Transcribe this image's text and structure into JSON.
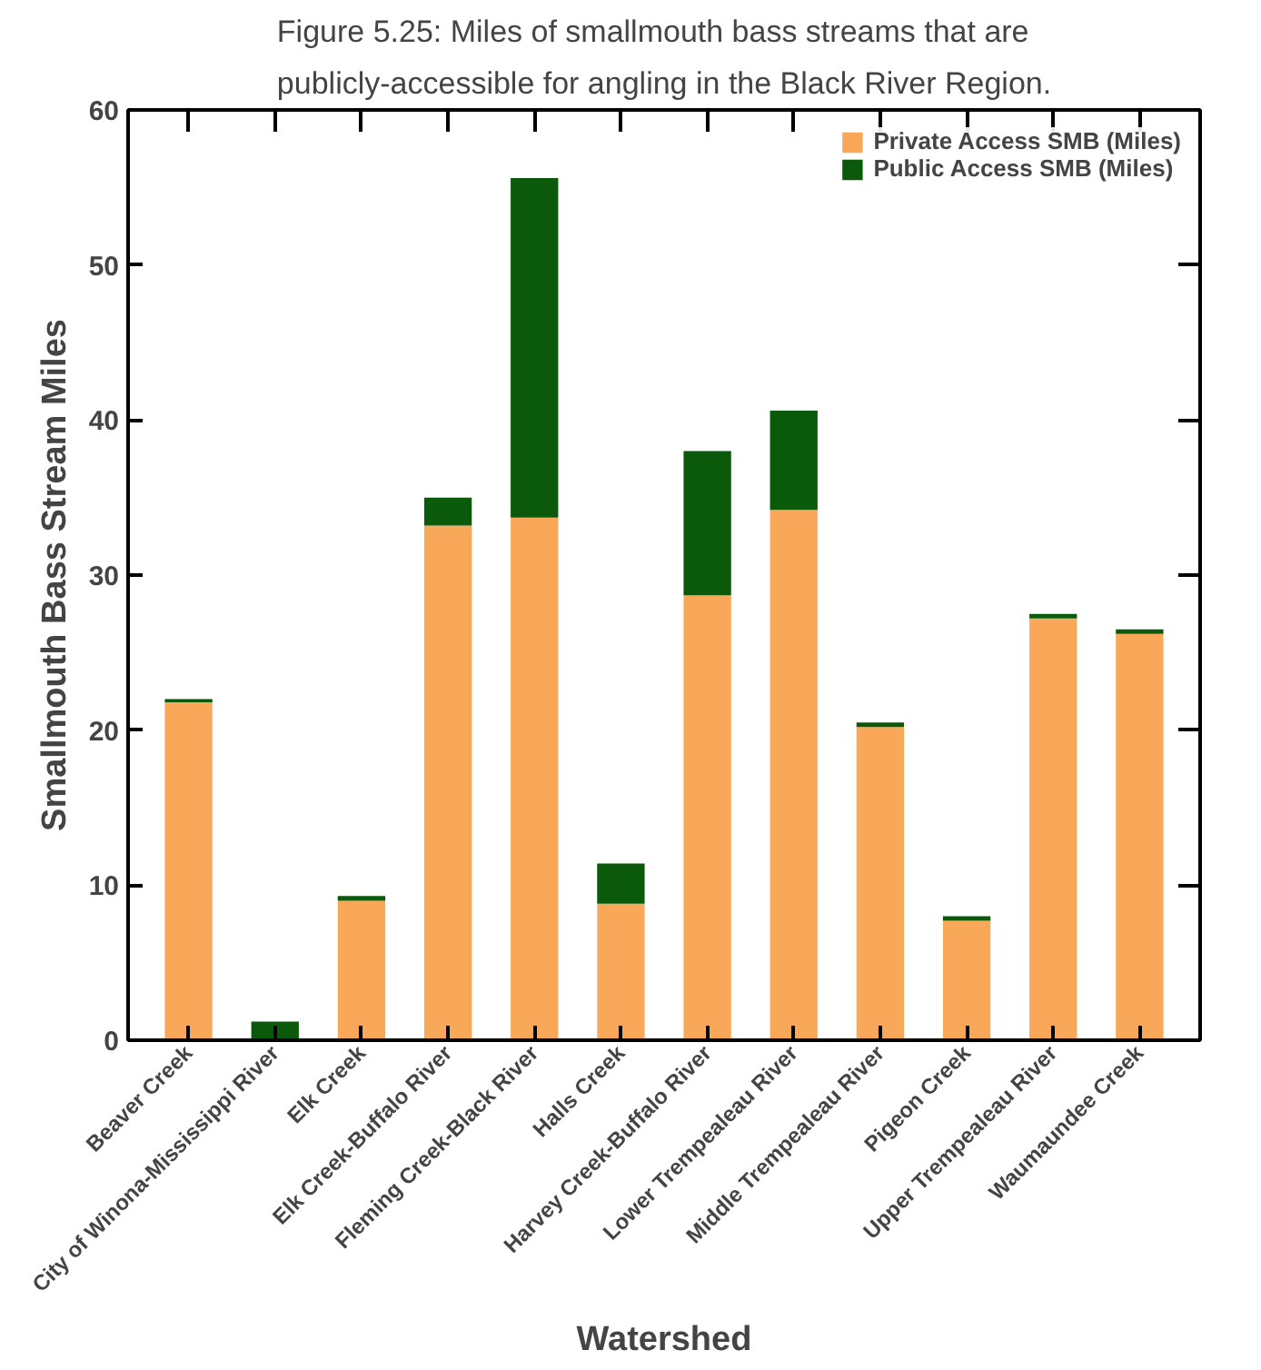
{
  "chart_data": {
    "type": "bar",
    "stacked": true,
    "title": "Figure 5.25: Miles of smallmouth bass streams that are publicly-accessible for angling in the Black River Region.",
    "xlabel": "Watershed",
    "ylabel": "Smallmouth Bass Stream Miles",
    "categories": [
      "Beaver Creek",
      "City of Winona-Mississippi River",
      "Elk Creek",
      "Elk Creek-Buffalo River",
      "Fleming Creek-Black River",
      "Halls Creek",
      "Harvey Creek-Buffalo River",
      "Lower Trempealeau River",
      "Middle Trempealeau River",
      "Pigeon Creek",
      "Upper Trempealeau River",
      "Waumaundee Creek"
    ],
    "series": [
      {
        "name": "Private Access SMB (Miles)",
        "color": "#f9a85a",
        "values": [
          21.8,
          0,
          9.0,
          33.2,
          33.7,
          8.8,
          28.7,
          34.2,
          20.2,
          7.7,
          27.2,
          26.2
        ]
      },
      {
        "name": "Public Access SMB (Miles)",
        "color": "#0b5a0b",
        "values": [
          0.2,
          1.2,
          0.3,
          1.8,
          21.9,
          2.6,
          9.3,
          6.4,
          0.3,
          0.3,
          0.3,
          0.3
        ]
      }
    ],
    "ylim": [
      0,
      60
    ],
    "yticks": [
      0,
      10,
      20,
      30,
      40,
      50,
      60
    ],
    "grid": false,
    "legend": "top right"
  }
}
